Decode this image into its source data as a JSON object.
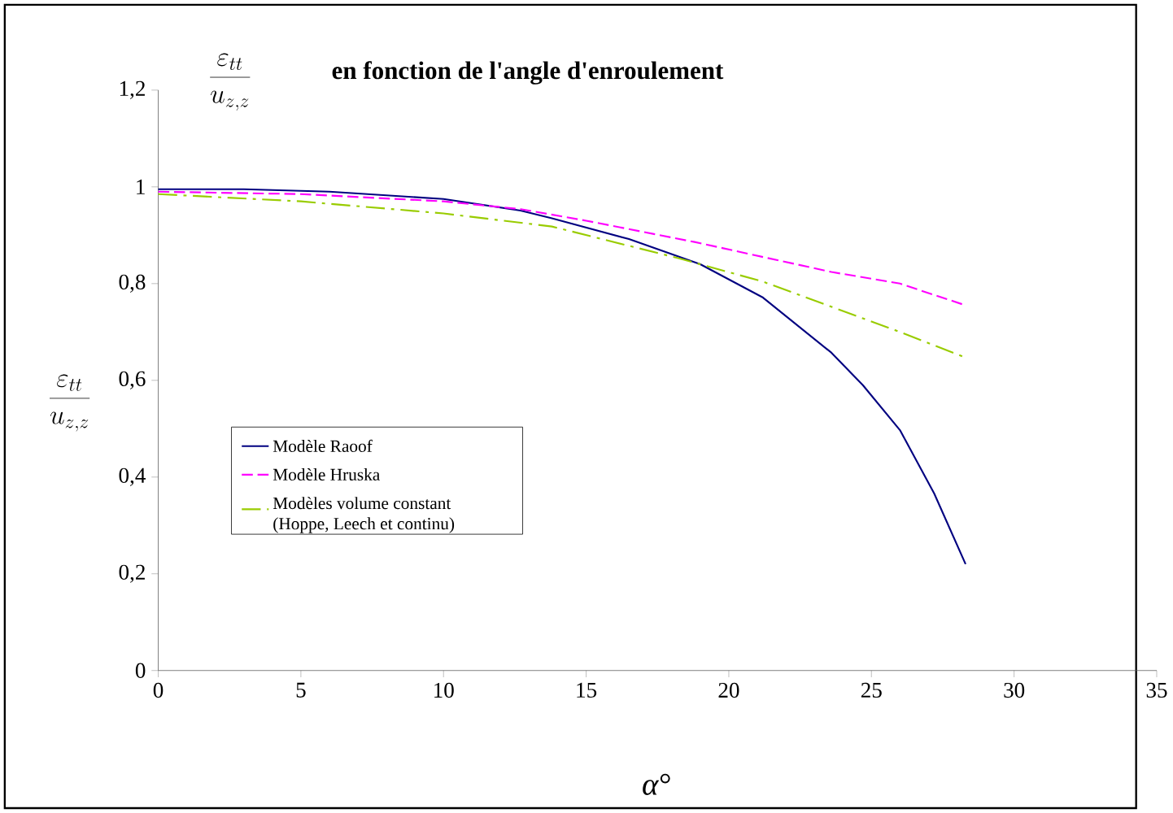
{
  "chart_data": {
    "type": "line",
    "title": "en fonction de l'angle d'enroulement",
    "annotations": [
      "\\frac{\\varepsilon_{tt}}{u_{z,z}}"
    ],
    "xlabel": "*α*°",
    "ylabel": "\\frac{\\varepsilon_{tt}}{u_{z,z}}",
    "xlim": [
      0,
      35
    ],
    "xticks": [
      0,
      5,
      10,
      15,
      20,
      25,
      30,
      35
    ],
    "ylim": [
      0,
      1.2
    ],
    "yticks": [
      0,
      {
        "value": 0.2,
        "label": "0,2"
      },
      {
        "value": 0.4,
        "label": "0,4"
      },
      {
        "value": 0.6,
        "label": "0,6"
      },
      {
        "value": 0.8,
        "label": "0,8"
      },
      1,
      {
        "value": 1.2,
        "label": "1,2"
      }
    ],
    "grid": false,
    "legend": "left",
    "marker": "none",
    "series": [
      {
        "name": "Modèle Raoof",
        "color": "#000080",
        "line_style": "solid",
        "x": [
          0,
          3,
          6,
          10,
          12.7,
          13.8,
          16.5,
          19,
          21.2,
          23.6,
          24.7,
          26,
          27.2,
          28.3
        ],
        "values": [
          0.995,
          0.995,
          0.99,
          0.975,
          0.951,
          0.935,
          0.892,
          0.84,
          0.771,
          0.657,
          0.59,
          0.497,
          0.366,
          0.22
        ]
      },
      {
        "name": "Modèle Hruska",
        "color": "#ff00ff",
        "line_style": "dashed",
        "x": [
          0,
          5,
          10,
          12.7,
          15,
          18.8,
          23.6,
          26,
          28.3
        ],
        "values": [
          0.99,
          0.985,
          0.97,
          0.954,
          0.93,
          0.886,
          0.824,
          0.8,
          0.755
        ]
      },
      {
        "name": "Modèles volume constant (Hoppe, Leech et continu)",
        "color": "#99cc00",
        "line_style": "dashdot",
        "x": [
          0,
          5,
          10,
          13.8,
          18.2,
          21.2,
          26,
          28.3
        ],
        "values": [
          0.985,
          0.97,
          0.945,
          0.918,
          0.853,
          0.804,
          0.7,
          0.647
        ]
      }
    ]
  }
}
